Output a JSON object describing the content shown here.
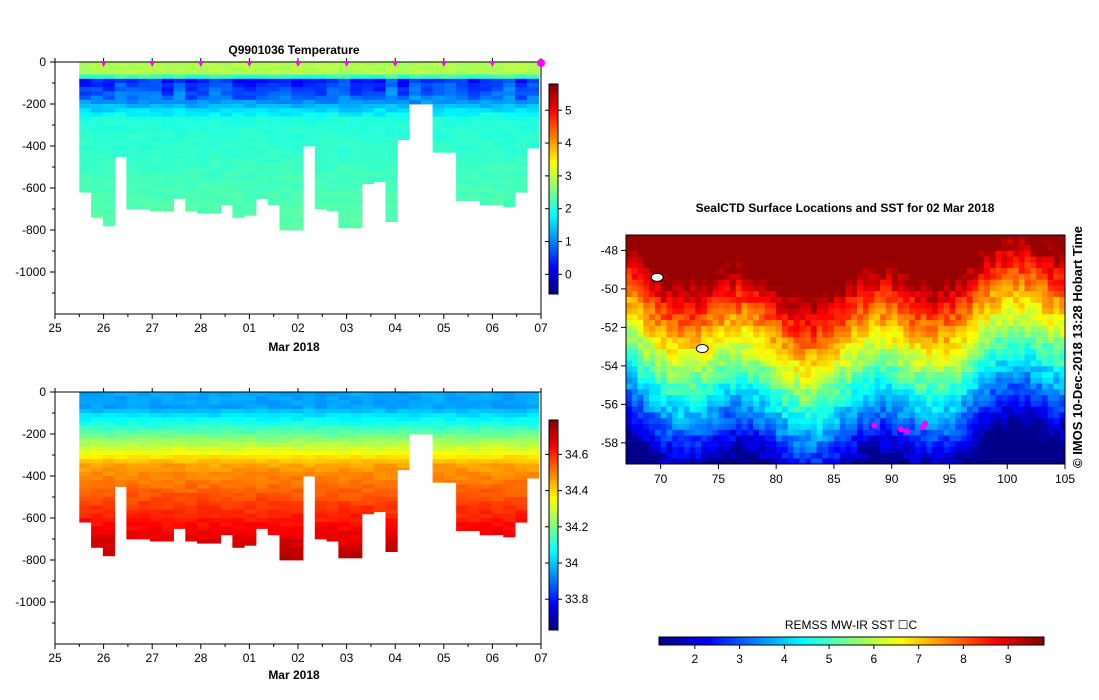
{
  "chart_data": [
    {
      "type": "heatmap",
      "title": "Q9901036  Temperature",
      "xlabel": "Mar 2018",
      "ylabel": "",
      "x_tick_labels": [
        "25",
        "26",
        "27",
        "28",
        "01",
        "02",
        "03",
        "04",
        "05",
        "06",
        "07"
      ],
      "x_ticks": [
        25,
        26,
        27,
        28,
        29,
        30,
        31,
        32,
        33,
        34,
        35
      ],
      "xlim": [
        25,
        35
      ],
      "y_ticks": [
        0,
        -200,
        -400,
        -600,
        -800,
        -1000
      ],
      "ylim": [
        -1200,
        0
      ],
      "profile_start_day": 25.5,
      "profile_end_day": 34.95,
      "profile_max_depths": [
        620,
        740,
        780,
        450,
        700,
        700,
        710,
        710,
        650,
        710,
        720,
        720,
        680,
        740,
        730,
        650,
        680,
        800,
        800,
        400,
        700,
        710,
        790,
        790,
        580,
        570,
        760,
        370,
        200,
        200,
        430,
        430,
        660,
        660,
        680,
        680,
        690,
        620,
        410
      ],
      "surface_markers_day": [
        26,
        27,
        28,
        29,
        30,
        31,
        32,
        33,
        34
      ],
      "highlight_marker_day": 35,
      "colorbar": {
        "min": -0.6,
        "max": 5.8,
        "ticks": [
          0,
          1,
          2,
          3,
          4,
          5
        ]
      },
      "palette": "jet"
    },
    {
      "type": "heatmap",
      "title": "",
      "xlabel": "Mar 2018",
      "ylabel": "",
      "x_tick_labels": [
        "25",
        "26",
        "27",
        "28",
        "01",
        "02",
        "03",
        "04",
        "05",
        "06",
        "07"
      ],
      "x_ticks": [
        25,
        26,
        27,
        28,
        29,
        30,
        31,
        32,
        33,
        34,
        35
      ],
      "xlim": [
        25,
        35
      ],
      "y_ticks": [
        0,
        -200,
        -400,
        -600,
        -800,
        -1000
      ],
      "ylim": [
        -1200,
        0
      ],
      "profile_start_day": 25.5,
      "profile_end_day": 34.95,
      "profile_max_depths": [
        620,
        740,
        780,
        450,
        700,
        700,
        710,
        710,
        650,
        710,
        720,
        720,
        680,
        740,
        730,
        650,
        680,
        800,
        800,
        400,
        700,
        710,
        790,
        790,
        580,
        570,
        760,
        370,
        200,
        200,
        430,
        430,
        660,
        660,
        680,
        680,
        690,
        620,
        410
      ],
      "colorbar": {
        "min": 33.63,
        "max": 34.79,
        "ticks": [
          33.8,
          34,
          34.2,
          34.4,
          34.6
        ],
        "tick_labels": [
          "33.8",
          "34",
          "34.2",
          "34.4",
          "34.6"
        ]
      },
      "palette": "jet"
    },
    {
      "type": "heatmap",
      "title": "SealCTD Surface Locations and SST for 02 Mar 2018",
      "xlabel": "",
      "ylabel": "",
      "xlim": [
        67,
        105
      ],
      "ylim": [
        -59.1,
        -47.2
      ],
      "x_ticks": [
        70,
        75,
        80,
        85,
        90,
        95,
        100,
        105
      ],
      "y_ticks": [
        -48,
        -50,
        -52,
        -54,
        -56,
        -58
      ],
      "y_tick_labels": [
        "-48",
        "-50",
        "-52",
        "-54",
        "-56",
        "-58"
      ],
      "colorbar": {
        "label": "REMSS MW-IR SST ☐C",
        "min": 1.2,
        "max": 9.8,
        "ticks": [
          2,
          3,
          4,
          5,
          6,
          7,
          8,
          9
        ]
      },
      "side_label": "© IMOS 10-Dec-2018 13:28 Hobart Time",
      "track_points": [
        [
          90.8,
          -57.3
        ],
        [
          91.3,
          -57.4
        ],
        [
          92.7,
          -57.2
        ],
        [
          92.9,
          -57.0
        ],
        [
          88.5,
          -57.1
        ]
      ],
      "island_points": [
        [
          69.7,
          -49.4
        ],
        [
          73.6,
          -53.1
        ]
      ],
      "palette": "jet"
    }
  ],
  "colors": {
    "highlight": "#ff00ff",
    "marker": "#ff00ff",
    "land": "#ffffff"
  }
}
